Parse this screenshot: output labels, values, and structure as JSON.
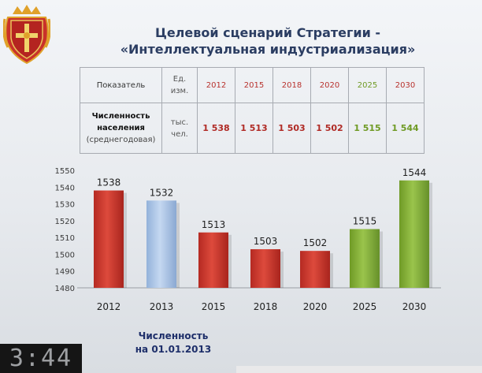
{
  "title": {
    "line1": "Целевой сценарий Стратегии -",
    "line2": "«Интеллектуальная индустриализация»"
  },
  "table": {
    "header_indicator": "Показатель",
    "header_unit": "Ед. изм.",
    "years": [
      "2012",
      "2015",
      "2018",
      "2020",
      "2025",
      "2030"
    ],
    "metric_line1": "Численность",
    "metric_line2": "населения",
    "metric_line3": "(среднегодовая)",
    "unit": "тыс. чел.",
    "values": [
      "1 538",
      "1 513",
      "1 503",
      "1 502",
      "1 515",
      "1 544"
    ],
    "colors": {
      "red": "#b02a25",
      "green": "#6f9a24"
    }
  },
  "chart_data": {
    "type": "bar",
    "categories": [
      "2012",
      "2013",
      "2015",
      "2018",
      "2020",
      "2025",
      "2030"
    ],
    "values": [
      1538,
      1532,
      1513,
      1503,
      1502,
      1515,
      1544
    ],
    "data_labels": [
      "1538",
      "1532",
      "1513",
      "1503",
      "1502",
      "1515",
      "1544"
    ],
    "bar_colors": [
      "#cc3a30",
      "#aac4e6",
      "#cc3a30",
      "#cc3a30",
      "#cc3a30",
      "#85ad3a",
      "#85ad3a"
    ],
    "title": "",
    "xlabel": "",
    "ylabel": "",
    "ylim": [
      1480,
      1550
    ],
    "yticks": [
      1480,
      1490,
      1500,
      1510,
      1520,
      1530,
      1540,
      1550
    ],
    "grid": false
  },
  "note": {
    "line1": "Численность",
    "line2": "на 01.01.2013"
  },
  "clock": "3:44"
}
